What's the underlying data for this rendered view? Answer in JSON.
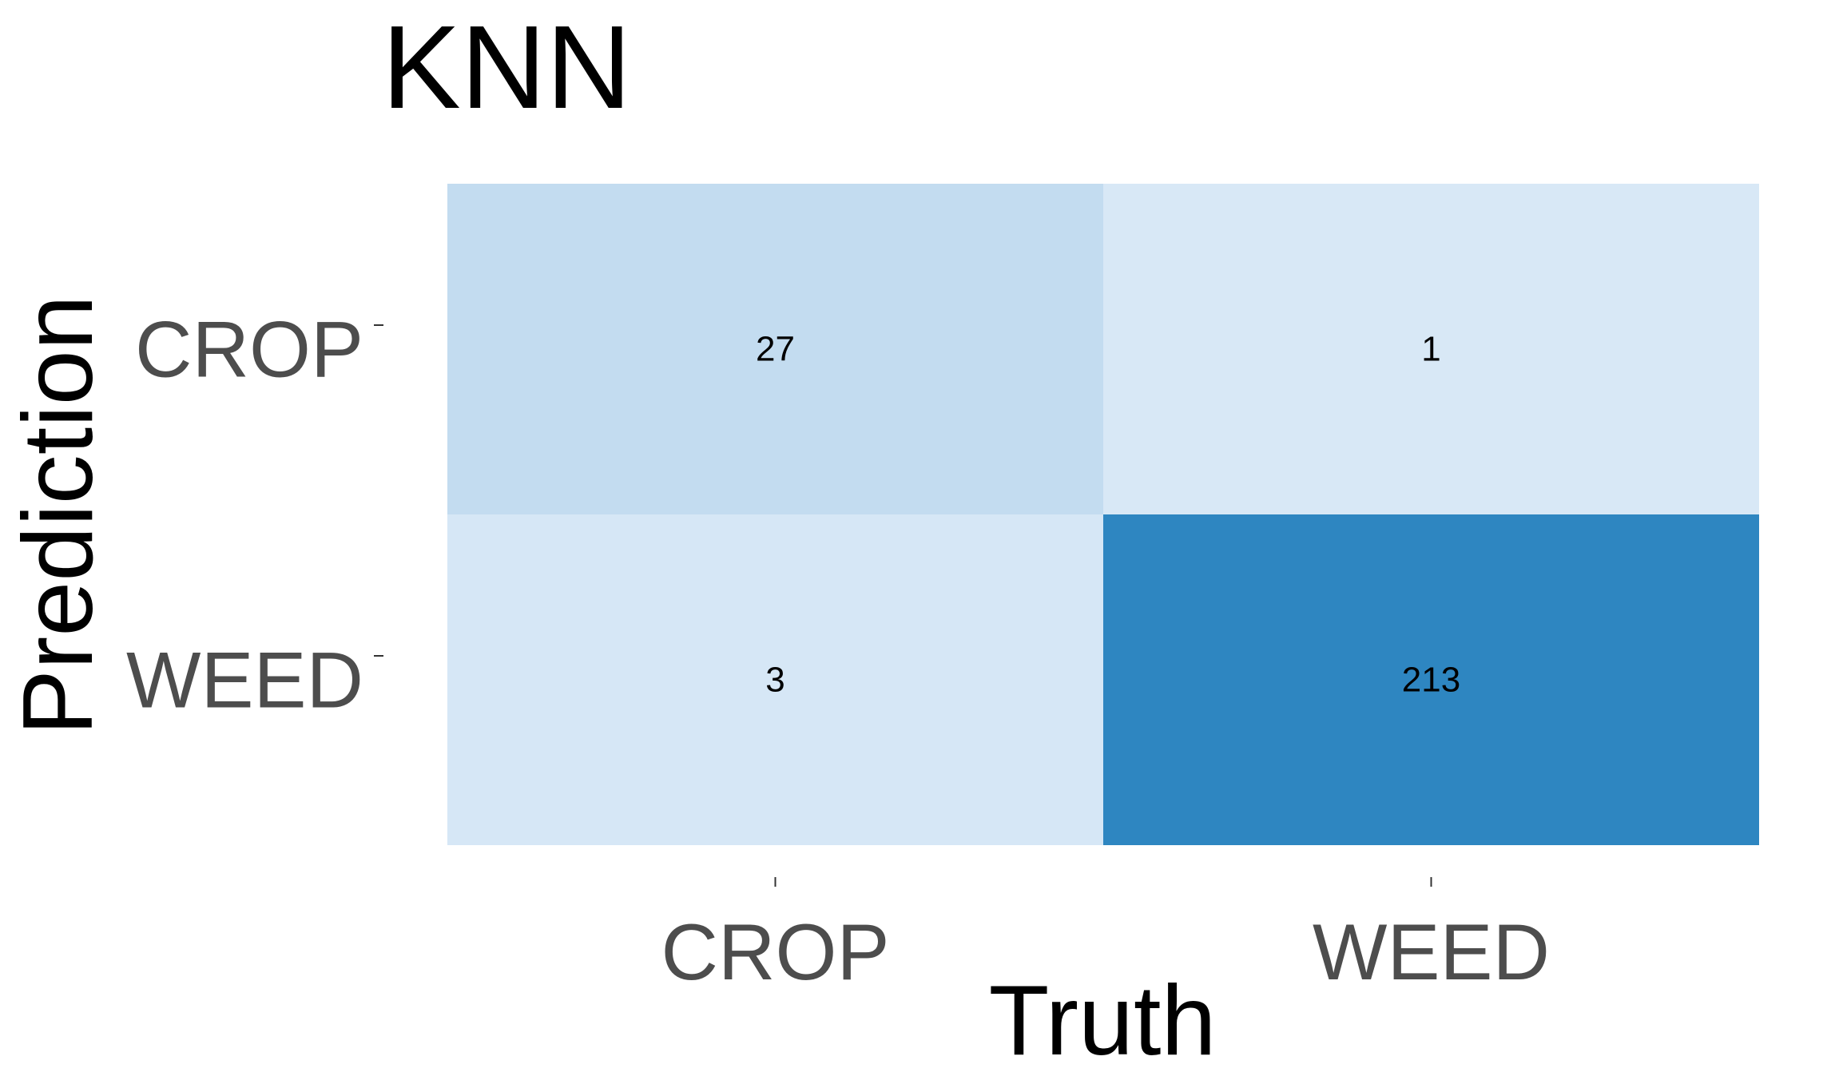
{
  "chart_data": {
    "type": "heatmap",
    "title": "KNN",
    "xlabel": "Truth",
    "ylabel": "Prediction",
    "x_categories": [
      "CROP",
      "WEED"
    ],
    "y_categories": [
      "CROP",
      "WEED"
    ],
    "cells": [
      {
        "truth": "CROP",
        "prediction": "CROP",
        "value": 27
      },
      {
        "truth": "WEED",
        "prediction": "CROP",
        "value": 1
      },
      {
        "truth": "CROP",
        "prediction": "WEED",
        "value": 3
      },
      {
        "truth": "WEED",
        "prediction": "WEED",
        "value": 213
      }
    ],
    "color_scale": {
      "low": "#d8e8f6",
      "high": "#2e86c1"
    },
    "grid": false,
    "legend": "none"
  }
}
